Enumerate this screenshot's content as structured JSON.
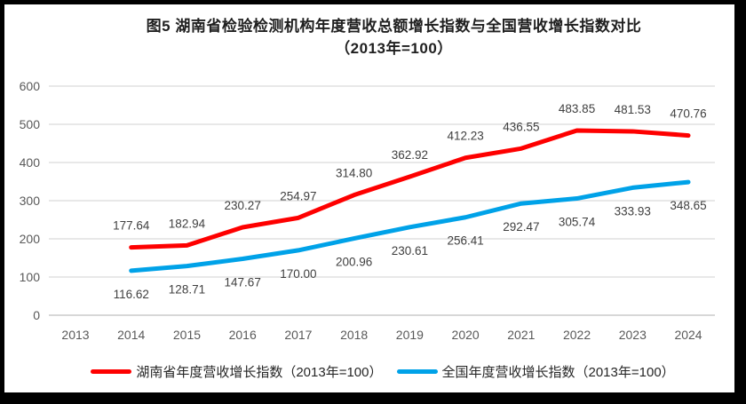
{
  "chart_data": {
    "type": "line",
    "title": "图5 湖南省检验检测机构年度营收总额增长指数与全国营收增长指数对比",
    "subtitle": "（2013年=100）",
    "categories": [
      "2013",
      "2014",
      "2015",
      "2016",
      "2017",
      "2018",
      "2019",
      "2020",
      "2021",
      "2022",
      "2023",
      "2024"
    ],
    "series": [
      {
        "name": "湖南省年度营收增长指数（2013年=100）",
        "color": "#fe0000",
        "start_index": 1,
        "values": [
          177.64,
          182.94,
          230.27,
          254.97,
          314.8,
          362.92,
          412.23,
          436.55,
          483.85,
          481.53,
          470.76
        ],
        "label_side": "above"
      },
      {
        "name": "全国年度营收增长指数（2013年=100）",
        "color": "#00a2e8",
        "start_index": 1,
        "values": [
          116.62,
          128.71,
          147.67,
          170.0,
          200.96,
          230.61,
          256.41,
          292.47,
          305.74,
          333.93,
          348.65
        ],
        "label_side": "below"
      }
    ],
    "yticks": [
      0,
      100,
      200,
      300,
      400,
      500,
      600
    ],
    "ylim": [
      0,
      600
    ],
    "grid": true,
    "legend_position": "bottom",
    "colors": {
      "gridline": "#d9d9d9",
      "axis_line": "#bfbfbf",
      "tick_label": "#595959",
      "data_label": "#404040"
    }
  }
}
